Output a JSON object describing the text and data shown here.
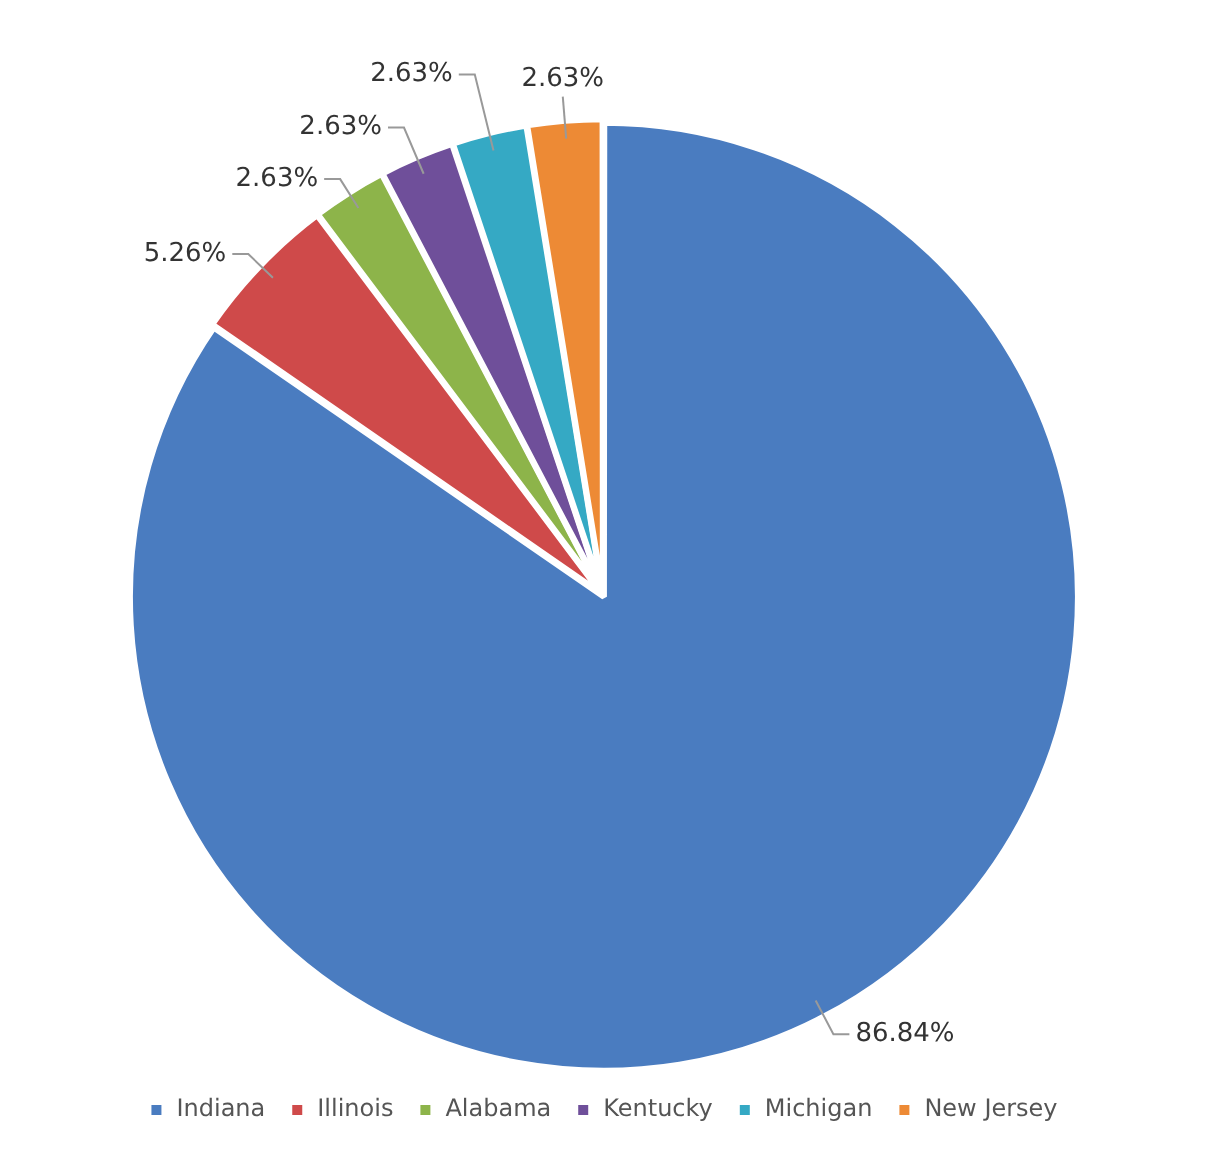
{
  "chart_data": {
    "type": "pie",
    "categories": [
      "Indiana",
      "Illinois",
      "Alabama",
      "Kentucky",
      "Michigan",
      "New Jersey"
    ],
    "values": [
      86.84,
      5.26,
      2.63,
      2.63,
      2.63,
      2.63
    ],
    "colors": [
      "#4a7cc0",
      "#cf4a4a",
      "#8db44a",
      "#6f4f9a",
      "#35a9c4",
      "#ed8a35"
    ],
    "value_labels": [
      "86.84%",
      "5.26%",
      "2.63%",
      "2.63%",
      "2.63%",
      "2.63%"
    ],
    "legend": "bottom"
  }
}
